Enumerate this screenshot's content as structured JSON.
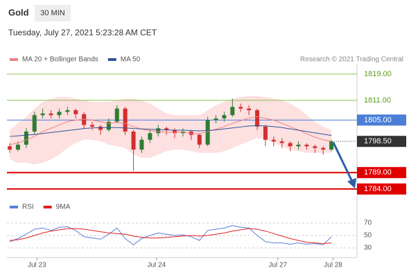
{
  "chart_data": {
    "type": "candlestick",
    "title": "Gold",
    "interval": "30 MIN",
    "subtitle": "Tuesday, July 27, 2021 5:23:28 AM CET",
    "source": "Research © 2021 Trading Central",
    "xlim": [
      -0.34,
      42.1
    ],
    "xticks": [
      {
        "value": 3.3,
        "label": "Jul 23"
      },
      {
        "value": 17.8,
        "label": "Jul 24"
      },
      {
        "value": 32.5,
        "label": "Jul 27"
      },
      {
        "value": 39.2,
        "label": "Jul 28"
      }
    ],
    "ylim": [
      1782,
      1821
    ],
    "up_color": "#2e7d32",
    "down_color": "#d32f2f",
    "candles": [
      [
        1797.0,
        1798.0,
        1795.0,
        1796.0
      ],
      [
        1796.0,
        1798.5,
        1795.5,
        1797.5
      ],
      [
        1797.5,
        1802.5,
        1796.5,
        1801.5
      ],
      [
        1801.5,
        1807.5,
        1800.5,
        1806.5
      ],
      [
        1806.5,
        1808.5,
        1805.5,
        1807.0
      ],
      [
        1807.0,
        1808.0,
        1805.5,
        1806.5
      ],
      [
        1806.5,
        1808.5,
        1805.5,
        1807.5
      ],
      [
        1807.5,
        1809.0,
        1806.5,
        1808.0
      ],
      [
        1808.0,
        1808.5,
        1805.5,
        1806.8
      ],
      [
        1806.8,
        1807.5,
        1802.5,
        1803.5
      ],
      [
        1803.5,
        1804.5,
        1802.0,
        1803.0
      ],
      [
        1803.0,
        1803.5,
        1800.5,
        1802.0
      ],
      [
        1802.0,
        1805.5,
        1801.5,
        1804.5
      ],
      [
        1804.5,
        1809.5,
        1804.0,
        1808.5
      ],
      [
        1808.5,
        1809.0,
        1800.5,
        1801.5
      ],
      [
        1801.5,
        1802.0,
        1789.5,
        1796.0
      ],
      [
        1796.0,
        1800.0,
        1795.0,
        1799.0
      ],
      [
        1799.0,
        1802.0,
        1798.0,
        1801.0
      ],
      [
        1801.0,
        1803.5,
        1800.0,
        1802.5
      ],
      [
        1802.5,
        1803.0,
        1800.5,
        1802.0
      ],
      [
        1802.0,
        1802.5,
        1799.5,
        1801.0
      ],
      [
        1801.0,
        1802.5,
        1800.0,
        1801.5
      ],
      [
        1801.5,
        1802.0,
        1799.0,
        1800.5
      ],
      [
        1800.5,
        1801.0,
        1796.5,
        1797.5
      ],
      [
        1797.5,
        1806.0,
        1797.0,
        1805.0
      ],
      [
        1805.0,
        1806.5,
        1804.0,
        1805.5
      ],
      [
        1805.5,
        1807.5,
        1804.5,
        1806.5
      ],
      [
        1806.5,
        1811.5,
        1806.0,
        1809.0
      ],
      [
        1809.0,
        1810.0,
        1807.5,
        1808.5
      ],
      [
        1808.5,
        1809.5,
        1806.5,
        1808.0
      ],
      [
        1808.0,
        1808.5,
        1802.0,
        1803.0
      ],
      [
        1803.0,
        1803.5,
        1797.0,
        1799.0
      ],
      [
        1799.0,
        1800.0,
        1797.0,
        1798.5
      ],
      [
        1798.5,
        1799.5,
        1796.5,
        1798.0
      ],
      [
        1798.0,
        1798.5,
        1795.5,
        1797.0
      ],
      [
        1797.0,
        1798.5,
        1796.0,
        1797.5
      ],
      [
        1797.5,
        1798.0,
        1796.0,
        1797.0
      ],
      [
        1797.0,
        1797.5,
        1795.0,
        1796.5
      ],
      [
        1796.5,
        1797.0,
        1794.5,
        1796.0
      ],
      [
        1796.0,
        1799.0,
        1795.5,
        1798.5
      ]
    ],
    "series": [
      {
        "name": "MA 20 + Bollinger Bands",
        "color": "#f08080",
        "band_color": "#fde0e0",
        "values": [
          1797.5,
          1798.0,
          1799.0,
          1800.0,
          1801.5,
          1802.5,
          1803.5,
          1804.5,
          1805.0,
          1805.2,
          1805.0,
          1804.5,
          1804.0,
          1804.2,
          1804.0,
          1803.0,
          1802.2,
          1801.8,
          1801.5,
          1801.3,
          1801.2,
          1801.3,
          1801.0,
          1800.8,
          1801.5,
          1802.2,
          1803.0,
          1804.0,
          1804.8,
          1805.6,
          1806.0,
          1805.5,
          1805.0,
          1804.0,
          1803.0,
          1802.0,
          1800.8,
          1799.8,
          1799.0,
          1798.5
        ],
        "band_upper": [
          1802,
          1804,
          1806,
          1808.5,
          1810.5,
          1811.5,
          1812,
          1812,
          1811.5,
          1811,
          1810.5,
          1810.5,
          1810.5,
          1811,
          1811.5,
          1811.5,
          1811,
          1810,
          1808.5,
          1807,
          1806.5,
          1806.5,
          1806.5,
          1806.5,
          1808,
          1809.5,
          1810.5,
          1811.5,
          1812,
          1812.3,
          1812.3,
          1812,
          1811.5,
          1811,
          1810,
          1808.5,
          1806.5,
          1804.5,
          1803,
          1802
        ],
        "band_lower": [
          1793,
          1792,
          1792,
          1791.5,
          1792,
          1793,
          1794.5,
          1796.5,
          1798,
          1799,
          1799,
          1798.5,
          1797.5,
          1797,
          1796.5,
          1794.5,
          1793.5,
          1793.5,
          1794.5,
          1795.5,
          1796,
          1796,
          1795.5,
          1795,
          1795,
          1795,
          1795.5,
          1796.5,
          1797.5,
          1798.5,
          1799.5,
          1799,
          1798,
          1797,
          1796,
          1795.5,
          1795,
          1795,
          1795,
          1795
        ]
      },
      {
        "name": "MA 50",
        "color": "#2f5597",
        "values": [
          1800.0,
          1800.2,
          1800.4,
          1800.6,
          1800.9,
          1801.2,
          1801.5,
          1801.8,
          1802.1,
          1802.4,
          1802.6,
          1802.7,
          1802.7,
          1802.7,
          1802.6,
          1802.4,
          1802.3,
          1802.2,
          1802.1,
          1802.0,
          1801.9,
          1801.9,
          1801.8,
          1801.7,
          1801.8,
          1802.0,
          1802.3,
          1802.6,
          1802.9,
          1803.2,
          1803.3,
          1803.2,
          1803.0,
          1802.7,
          1802.3,
          1801.9,
          1801.5,
          1801.1,
          1800.7,
          1800.3
        ]
      }
    ],
    "levels": [
      {
        "value": 1819,
        "label": "1819.00",
        "color": "#8bc34a",
        "text_color": "#5a9e1a",
        "box": false
      },
      {
        "value": 1811,
        "label": "1811.00",
        "color": "#8bc34a",
        "text_color": "#5a9e1a",
        "box": false
      },
      {
        "value": 1805,
        "label": "1805.00",
        "color": "#4a7fd8",
        "text_color": "#ffffff",
        "box": true
      },
      {
        "value": 1798.5,
        "label": "1798.50",
        "color": "#333333",
        "text_color": "#ffffff",
        "box": true,
        "dotted": true
      },
      {
        "value": 1789,
        "label": "1789.00",
        "color": "#e00000",
        "text_color": "#ffffff",
        "box": true
      },
      {
        "value": 1784,
        "label": "1784.00",
        "color": "#e00000",
        "text_color": "#ffffff",
        "box": true
      }
    ],
    "rsi": {
      "ylim": [
        20,
        80
      ],
      "yticks": [
        30,
        50,
        70
      ],
      "series": [
        {
          "name": "RSI",
          "color": "#5b7fd6",
          "values": [
            40,
            45,
            52,
            60,
            62,
            58,
            63,
            64,
            58,
            48,
            46,
            44,
            52,
            62,
            45,
            35,
            45,
            50,
            54,
            52,
            50,
            51,
            48,
            42,
            58,
            60,
            62,
            66,
            63,
            62,
            50,
            40,
            38,
            38,
            36,
            38,
            36,
            37,
            35,
            48
          ]
        },
        {
          "name": "9MA",
          "color": "#e02020",
          "values": [
            42,
            43,
            46,
            50,
            54,
            57,
            59,
            61,
            61,
            60,
            58,
            56,
            54,
            53,
            52,
            49,
            47,
            46,
            46,
            47,
            48,
            49,
            50,
            49,
            50,
            52,
            54,
            57,
            59,
            61,
            60,
            57,
            53,
            49,
            45,
            42,
            39,
            38,
            37,
            38
          ]
        }
      ]
    }
  }
}
